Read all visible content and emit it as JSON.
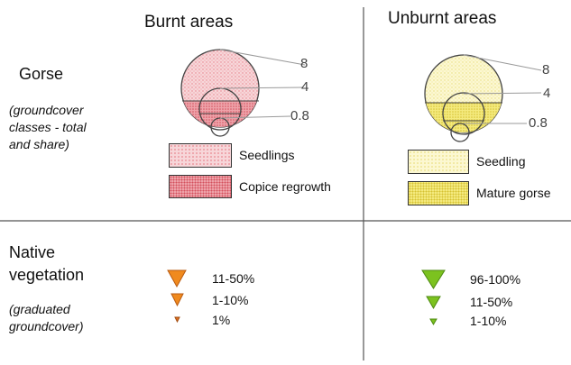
{
  "columns": {
    "burnt": "Burnt areas",
    "unburnt": "Unburnt areas"
  },
  "gorse": {
    "title": "Gorse",
    "note": "(groundcover classes - total and share)",
    "scale_labels": [
      "8",
      "4",
      "0.8"
    ]
  },
  "burnt_gorse_legend": [
    {
      "label": "Seedlings",
      "color": "#f3c9cd"
    },
    {
      "label": "Copice regrowth",
      "color": "#e8a2a8"
    }
  ],
  "unburnt_gorse_legend": [
    {
      "label": "Seedling",
      "color": "#fbf5c4"
    },
    {
      "label": "Mature gorse",
      "color": "#f2e66e"
    }
  ],
  "native": {
    "title": "Native vegetation",
    "note": "(graduated groundcover)"
  },
  "burnt_native_legend": [
    {
      "label": "11-50%",
      "color": "#f08a1e"
    },
    {
      "label": "1-10%",
      "color": "#f08a1e"
    },
    {
      "label": "1%",
      "color": "#e07020"
    }
  ],
  "unburnt_native_legend": [
    {
      "label": "96-100%",
      "color": "#7cc21f"
    },
    {
      "label": "11-50%",
      "color": "#7cc21f"
    },
    {
      "label": "1-10%",
      "color": "#7cc21f"
    }
  ],
  "colors": {
    "divider": "#555555",
    "leader": "#9a9a9a"
  }
}
